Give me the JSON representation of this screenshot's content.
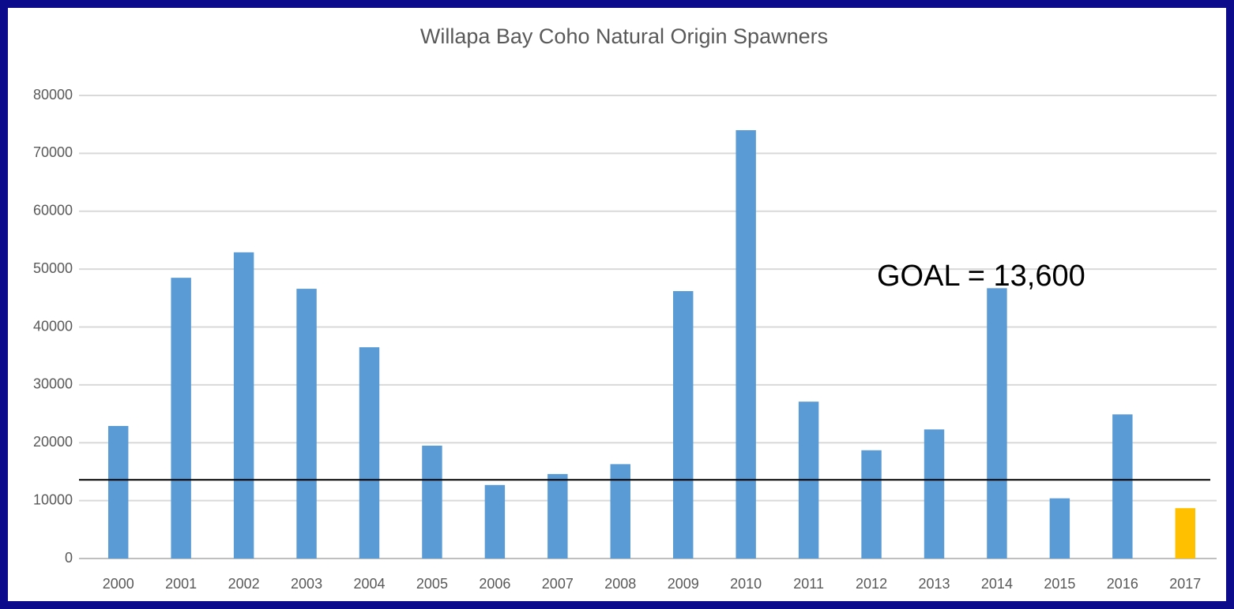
{
  "chart_data": {
    "type": "bar",
    "title": "Willapa Bay Coho Natural Origin Spawners",
    "categories": [
      "2000",
      "2001",
      "2002",
      "2003",
      "2004",
      "2005",
      "2006",
      "2007",
      "2008",
      "2009",
      "2010",
      "2011",
      "2012",
      "2013",
      "2014",
      "2015",
      "2016",
      "2017"
    ],
    "series": [
      {
        "name": "Spawners",
        "colors": [
          "#5b9bd5",
          "#5b9bd5",
          "#5b9bd5",
          "#5b9bd5",
          "#5b9bd5",
          "#5b9bd5",
          "#5b9bd5",
          "#5b9bd5",
          "#5b9bd5",
          "#5b9bd5",
          "#5b9bd5",
          "#5b9bd5",
          "#5b9bd5",
          "#5b9bd5",
          "#5b9bd5",
          "#5b9bd5",
          "#5b9bd5",
          "#ffc000"
        ],
        "values": [
          22900,
          48500,
          52900,
          46600,
          36500,
          19500,
          12700,
          14600,
          16300,
          46200,
          74000,
          27100,
          18700,
          22300,
          46700,
          10400,
          24900,
          8700
        ]
      }
    ],
    "ylim": [
      0,
      80000
    ],
    "yticks": [
      0,
      10000,
      20000,
      30000,
      40000,
      50000,
      60000,
      70000,
      80000
    ],
    "grid": true,
    "goal": {
      "value": 13600,
      "label": "GOAL = 13,600"
    }
  }
}
